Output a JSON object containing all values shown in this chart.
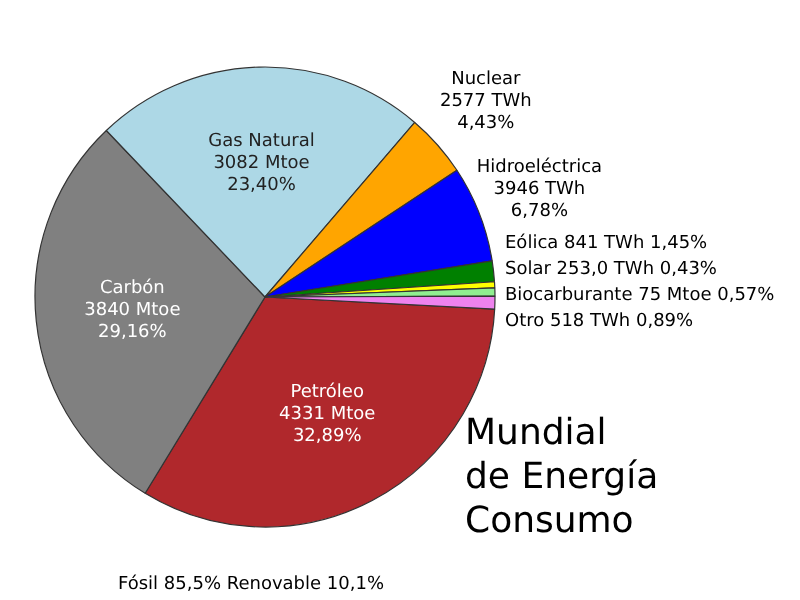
{
  "chart_data": {
    "type": "pie",
    "title": "Mundial\nde Energía\nConsumo",
    "categories": [
      "Petróleo",
      "Carbón",
      "Gas Natural",
      "Nuclear",
      "Hidroeléctrica",
      "Eólica",
      "Solar",
      "Biocarburante",
      "Otro"
    ],
    "values": [
      32.89,
      29.16,
      23.4,
      4.43,
      6.78,
      1.45,
      0.43,
      0.57,
      0.89
    ],
    "value_labels": [
      "4331 Mtoe\n32,89%",
      "3840 Mtoe\n29,16%",
      "3082 Mtoe\n23,40%",
      "2577 TWh\n4,43%",
      "3946 TWh\n6,78%",
      "841 TWh 1,45%",
      "253,0 TWh 0,43%",
      "75 Mtoe 0,57%",
      "518 TWh 0,89%"
    ],
    "colors": [
      "#b0282c",
      "#808080",
      "#add8e6",
      "#ffa500",
      "#0000ff",
      "#008000",
      "#ffff00",
      "#90ee90",
      "#ee82ee"
    ],
    "annotations": [
      "Fósil 85,5% Renovable 10,1%"
    ]
  }
}
